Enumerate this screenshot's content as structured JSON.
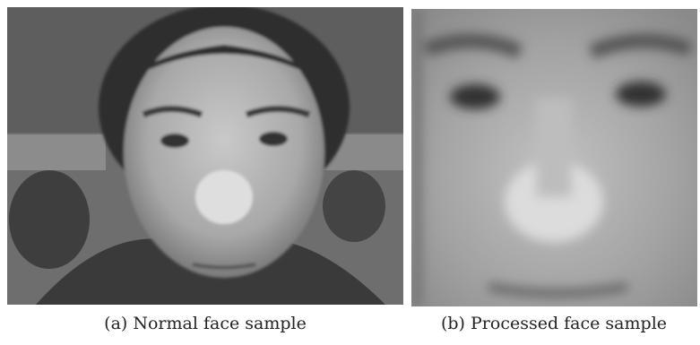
{
  "figure": {
    "subfigures": [
      {
        "caption": "(a) Normal face sample"
      },
      {
        "caption": "(b) Processed face sample"
      }
    ]
  }
}
